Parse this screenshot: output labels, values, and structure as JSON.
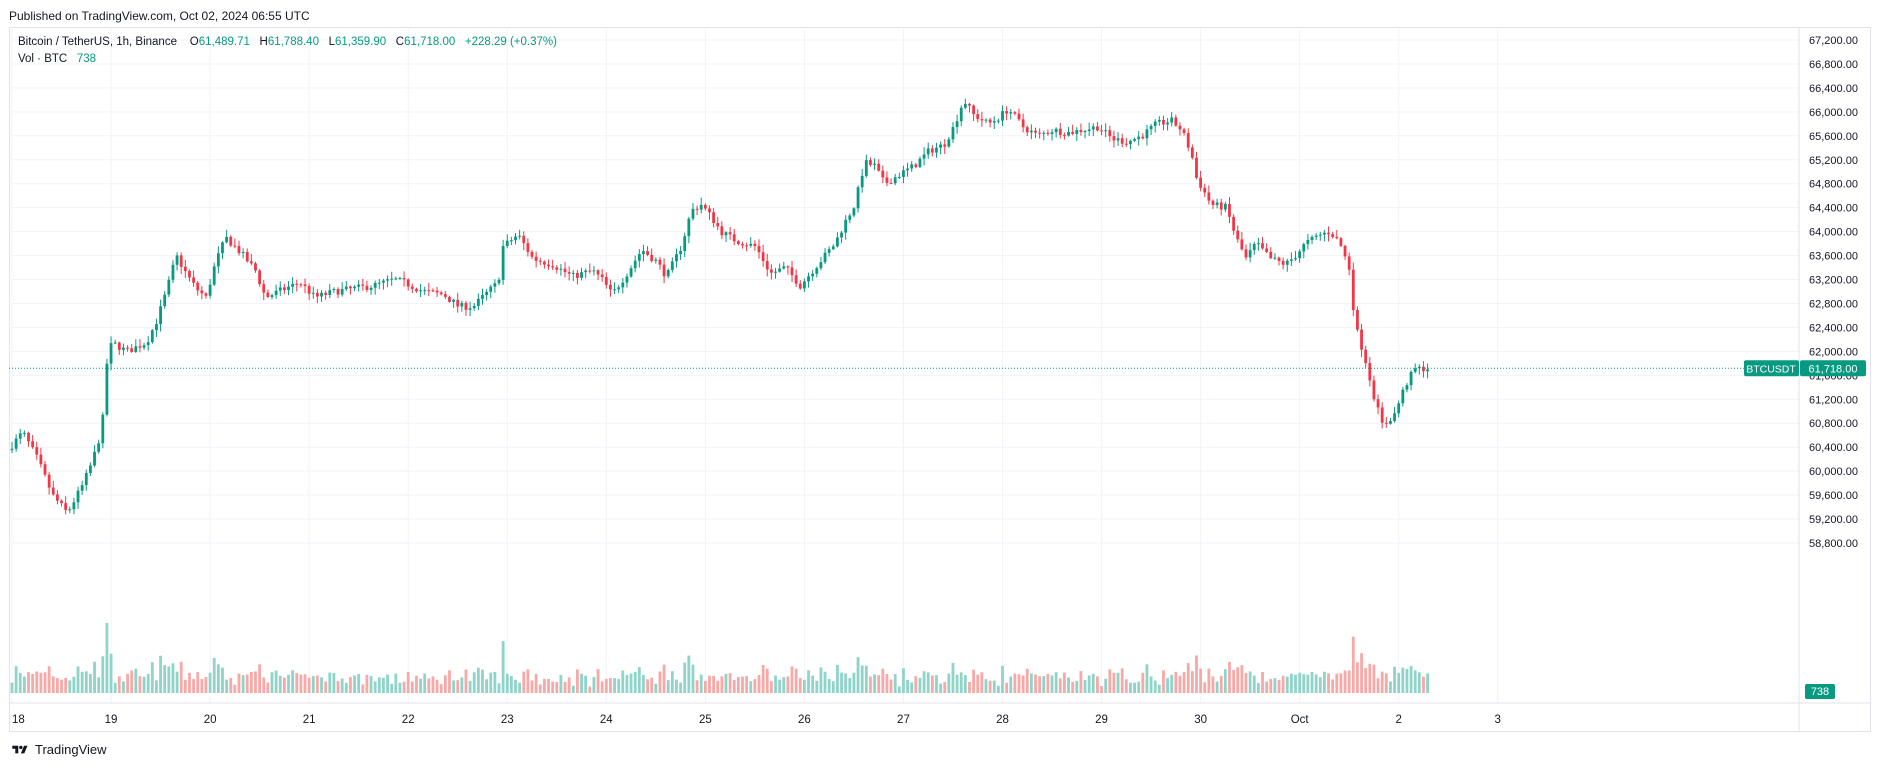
{
  "header": {
    "published": "Published on TradingView.com, Oct 02, 2024 06:55 UTC"
  },
  "legend": {
    "symbol": "Bitcoin / TetherUS, 1h, Binance",
    "o_label": "O",
    "o_value": "61,489.71",
    "h_label": "H",
    "h_value": "61,788.40",
    "l_label": "L",
    "l_value": "61,359.90",
    "c_label": "C",
    "c_value": "61,718.00",
    "change": "+228.29 (+0.37%)",
    "vol_label": "Vol · BTC",
    "vol_value": "738"
  },
  "footer": {
    "brand": "TradingView"
  },
  "colors": {
    "up": "#089981",
    "down": "#f23645",
    "vol_up": "#8fd3c9",
    "vol_down": "#f7a9a7",
    "grid": "#f0f3fa",
    "axis_text": "#131722"
  },
  "chart_data": {
    "type": "candlestick",
    "symbol": "BTCUSDT",
    "interval": "1h",
    "y_axis": {
      "ylim": [
        58600,
        67300
      ],
      "ticks": [
        "67,200.00",
        "66,800.00",
        "66,400.00",
        "66,000.00",
        "65,600.00",
        "65,200.00",
        "64,800.00",
        "64,400.00",
        "64,000.00",
        "63,600.00",
        "63,200.00",
        "62,800.00",
        "62,400.00",
        "62,000.00",
        "61,600.00",
        "61,200.00",
        "60,800.00",
        "60,400.00",
        "60,000.00",
        "59,600.00",
        "59,200.00",
        "58,800.00"
      ],
      "tick_values": [
        67200,
        66800,
        66400,
        66000,
        65600,
        65200,
        64800,
        64400,
        64000,
        63600,
        63200,
        62800,
        62400,
        62000,
        61600,
        61200,
        60800,
        60400,
        60000,
        59600,
        59200,
        58800
      ]
    },
    "x_axis": {
      "ticks": [
        "18",
        "19",
        "20",
        "21",
        "22",
        "23",
        "24",
        "25",
        "26",
        "27",
        "28",
        "29",
        "30",
        "Oct",
        "2",
        "3"
      ],
      "tick_days": [
        18,
        19,
        20,
        21,
        22,
        23,
        24,
        25,
        26,
        27,
        28,
        29,
        30,
        31,
        32,
        33
      ]
    },
    "last_price": {
      "label": "BTCUSDT",
      "value": "61,718.00",
      "price": 61718
    },
    "last_volume": {
      "value": "738"
    },
    "price_path": [
      [
        18.0,
        60350
      ],
      [
        18.15,
        60650
      ],
      [
        18.3,
        60200
      ],
      [
        18.45,
        59600
      ],
      [
        18.6,
        59300
      ],
      [
        18.75,
        59750
      ],
      [
        18.85,
        60150
      ],
      [
        18.95,
        60700
      ],
      [
        19.0,
        61800
      ],
      [
        19.05,
        62150
      ],
      [
        19.2,
        62000
      ],
      [
        19.4,
        62150
      ],
      [
        19.5,
        62500
      ],
      [
        19.6,
        63000
      ],
      [
        19.7,
        63600
      ],
      [
        19.8,
        63300
      ],
      [
        19.9,
        63050
      ],
      [
        20.0,
        62900
      ],
      [
        20.1,
        63500
      ],
      [
        20.2,
        63900
      ],
      [
        20.35,
        63650
      ],
      [
        20.5,
        63350
      ],
      [
        20.6,
        62900
      ],
      [
        20.8,
        63050
      ],
      [
        20.95,
        63150
      ],
      [
        21.1,
        62900
      ],
      [
        21.3,
        63000
      ],
      [
        21.5,
        63050
      ],
      [
        21.7,
        63100
      ],
      [
        21.9,
        63200
      ],
      [
        22.0,
        63150
      ],
      [
        22.2,
        63000
      ],
      [
        22.4,
        62950
      ],
      [
        22.55,
        62750
      ],
      [
        22.7,
        62750
      ],
      [
        22.85,
        63000
      ],
      [
        22.95,
        63150
      ],
      [
        23.0,
        63750
      ],
      [
        23.15,
        63950
      ],
      [
        23.3,
        63550
      ],
      [
        23.5,
        63450
      ],
      [
        23.7,
        63250
      ],
      [
        23.9,
        63350
      ],
      [
        24.0,
        63200
      ],
      [
        24.1,
        62950
      ],
      [
        24.25,
        63300
      ],
      [
        24.4,
        63700
      ],
      [
        24.55,
        63500
      ],
      [
        24.65,
        63250
      ],
      [
        24.8,
        63750
      ],
      [
        24.9,
        64350
      ],
      [
        25.0,
        64450
      ],
      [
        25.1,
        64250
      ],
      [
        25.2,
        64000
      ],
      [
        25.35,
        63850
      ],
      [
        25.55,
        63750
      ],
      [
        25.7,
        63300
      ],
      [
        25.85,
        63400
      ],
      [
        26.0,
        63100
      ],
      [
        26.15,
        63400
      ],
      [
        26.35,
        63800
      ],
      [
        26.45,
        64150
      ],
      [
        26.55,
        64450
      ],
      [
        26.65,
        65150
      ],
      [
        26.75,
        65100
      ],
      [
        26.85,
        64800
      ],
      [
        27.0,
        64950
      ],
      [
        27.15,
        65100
      ],
      [
        27.3,
        65350
      ],
      [
        27.45,
        65450
      ],
      [
        27.55,
        65750
      ],
      [
        27.65,
        66200
      ],
      [
        27.75,
        65950
      ],
      [
        27.9,
        65800
      ],
      [
        28.0,
        65900
      ],
      [
        28.1,
        66050
      ],
      [
        28.25,
        65750
      ],
      [
        28.4,
        65600
      ],
      [
        28.55,
        65700
      ],
      [
        28.7,
        65650
      ],
      [
        28.85,
        65700
      ],
      [
        29.0,
        65750
      ],
      [
        29.15,
        65550
      ],
      [
        29.3,
        65500
      ],
      [
        29.45,
        65600
      ],
      [
        29.6,
        65800
      ],
      [
        29.75,
        65850
      ],
      [
        29.85,
        65700
      ],
      [
        29.95,
        65300
      ],
      [
        30.0,
        64900
      ],
      [
        30.15,
        64450
      ],
      [
        30.3,
        64400
      ],
      [
        30.4,
        63900
      ],
      [
        30.5,
        63550
      ],
      [
        30.6,
        63800
      ],
      [
        30.75,
        63550
      ],
      [
        30.9,
        63450
      ],
      [
        31.0,
        63600
      ],
      [
        31.1,
        63800
      ],
      [
        31.25,
        63950
      ],
      [
        31.35,
        64000
      ],
      [
        31.45,
        63800
      ],
      [
        31.55,
        63350
      ],
      [
        31.6,
        62450
      ],
      [
        31.7,
        61900
      ],
      [
        31.8,
        61200
      ],
      [
        31.88,
        60750
      ],
      [
        32.0,
        60950
      ],
      [
        32.1,
        61400
      ],
      [
        32.2,
        61700
      ],
      [
        32.3,
        61718
      ]
    ]
  }
}
